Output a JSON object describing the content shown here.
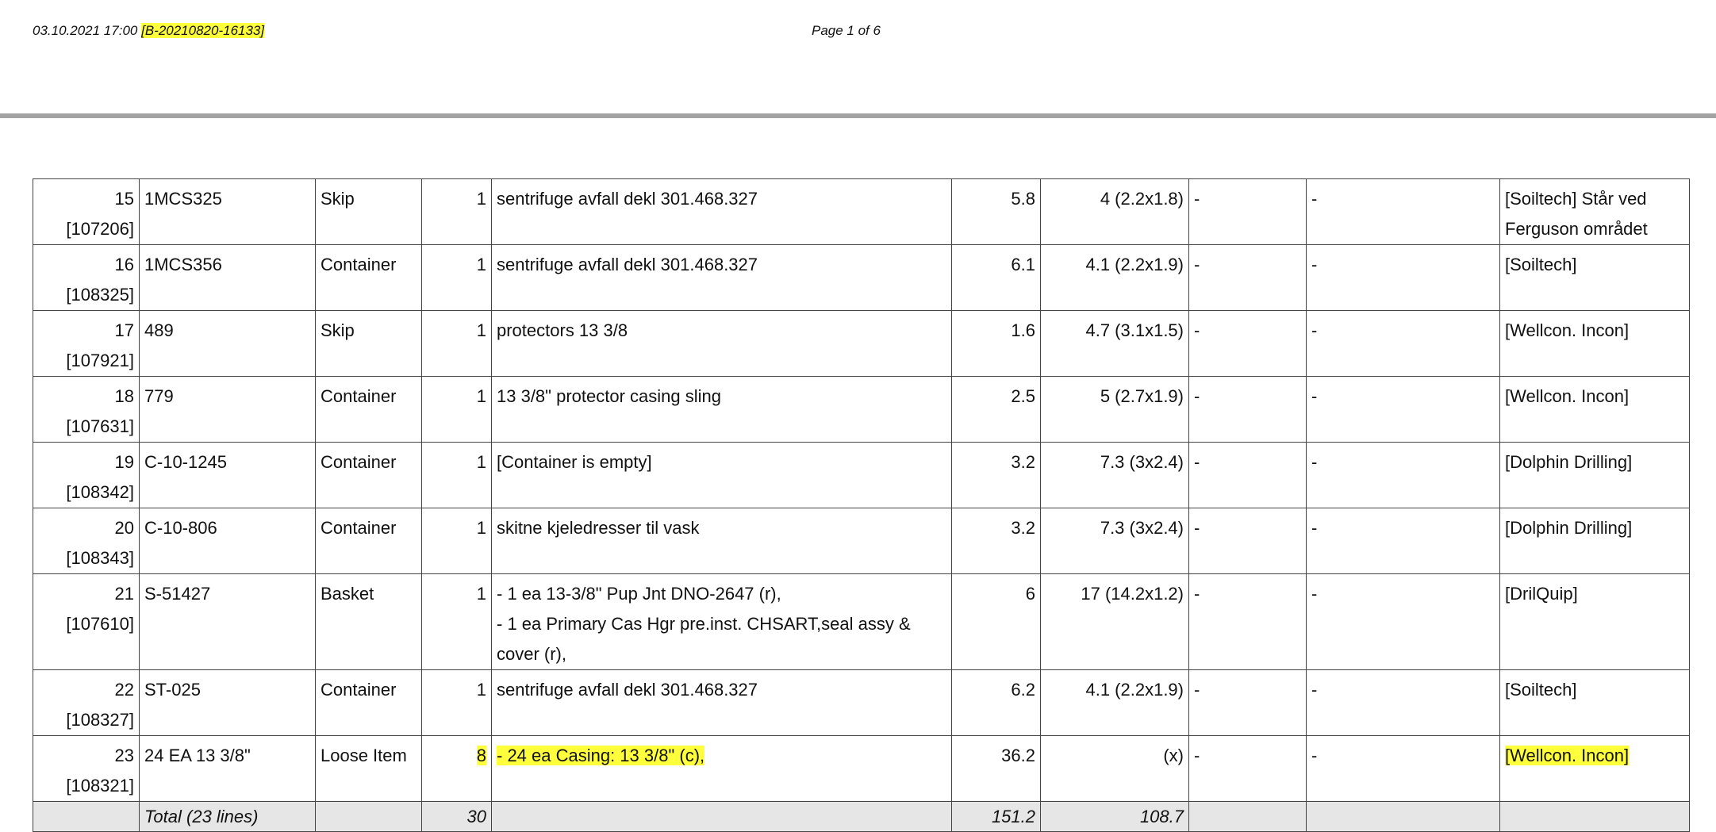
{
  "header": {
    "timestamp": "03.10.2021 17:00",
    "reference": "[B-20210820-16133]",
    "page": "Page 1 of 6"
  },
  "table": {
    "rows": [
      {
        "no": 15,
        "ref": "[107206]",
        "id": "1MCS325",
        "type": "Skip",
        "qty": 1,
        "description": [
          "sentrifuge avfall dekl 301.468.327"
        ],
        "weight": 5.8,
        "area": "4 (2.2x1.8)",
        "col8": "-",
        "col9": "-",
        "company": "[Soiltech] Står ved Ferguson området"
      },
      {
        "no": 16,
        "ref": "[108325]",
        "id": "1MCS356",
        "type": "Container",
        "qty": 1,
        "description": [
          "sentrifuge avfall dekl 301.468.327"
        ],
        "weight": 6.1,
        "area": "4.1 (2.2x1.9)",
        "col8": "-",
        "col9": "-",
        "company": "[Soiltech]"
      },
      {
        "no": 17,
        "ref": "[107921]",
        "id": "489",
        "type": "Skip",
        "qty": 1,
        "description": [
          "protectors 13 3/8"
        ],
        "weight": 1.6,
        "area": "4.7 (3.1x1.5)",
        "col8": "-",
        "col9": "-",
        "company": "[Wellcon. Incon]"
      },
      {
        "no": 18,
        "ref": "[107631]",
        "id": "779",
        "type": "Container",
        "qty": 1,
        "description": [
          "13 3/8\" protector  casing sling"
        ],
        "weight": 2.5,
        "area": "5 (2.7x1.9)",
        "col8": "-",
        "col9": "-",
        "company": "[Wellcon. Incon]"
      },
      {
        "no": 19,
        "ref": "[108342]",
        "id": "C-10-1245",
        "type": "Container",
        "qty": 1,
        "description": [
          "[Container is empty]"
        ],
        "weight": 3.2,
        "area": "7.3 (3x2.4)",
        "col8": "-",
        "col9": "-",
        "company": "[Dolphin Drilling]"
      },
      {
        "no": 20,
        "ref": "[108343]",
        "id": "C-10-806",
        "type": "Container",
        "qty": 1,
        "description": [
          "skitne kjeledresser til vask"
        ],
        "weight": 3.2,
        "area": "7.3 (3x2.4)",
        "col8": "-",
        "col9": "-",
        "company": "[Dolphin Drilling]"
      },
      {
        "no": 21,
        "ref": "[107610]",
        "id": "S-51427",
        "type": "Basket",
        "qty": 1,
        "description": [
          "- 1 ea 13-3/8\" Pup Jnt DNO-2647 (r),",
          "- 1 ea Primary Cas Hgr pre.inst. CHSART,seal assy &",
          "cover (r),"
        ],
        "weight": 6,
        "area": "17 (14.2x1.2)",
        "col8": "-",
        "col9": "-",
        "company": "[DrilQuip]"
      },
      {
        "no": 22,
        "ref": "[108327]",
        "id": "ST-025",
        "type": "Container",
        "qty": 1,
        "description": [
          "sentrifuge avfall dekl 301.468.327"
        ],
        "weight": 6.2,
        "area": "4.1 (2.2x1.9)",
        "col8": "-",
        "col9": "-",
        "company": "[Soiltech]"
      },
      {
        "no": 23,
        "ref": "[108321]",
        "id": "24 EA 13 3/8\"",
        "type": "Loose Item",
        "qty": 8,
        "description": [
          "- 24 ea Casing: 13 3/8\" (c),"
        ],
        "weight": 36.2,
        "area": "(x)",
        "col8": "-",
        "col9": "-",
        "company": "[Wellcon. Incon]"
      }
    ],
    "total": {
      "label": "Total (23 lines)",
      "qty": 30,
      "weight": 151.2,
      "area": 108.7
    }
  }
}
